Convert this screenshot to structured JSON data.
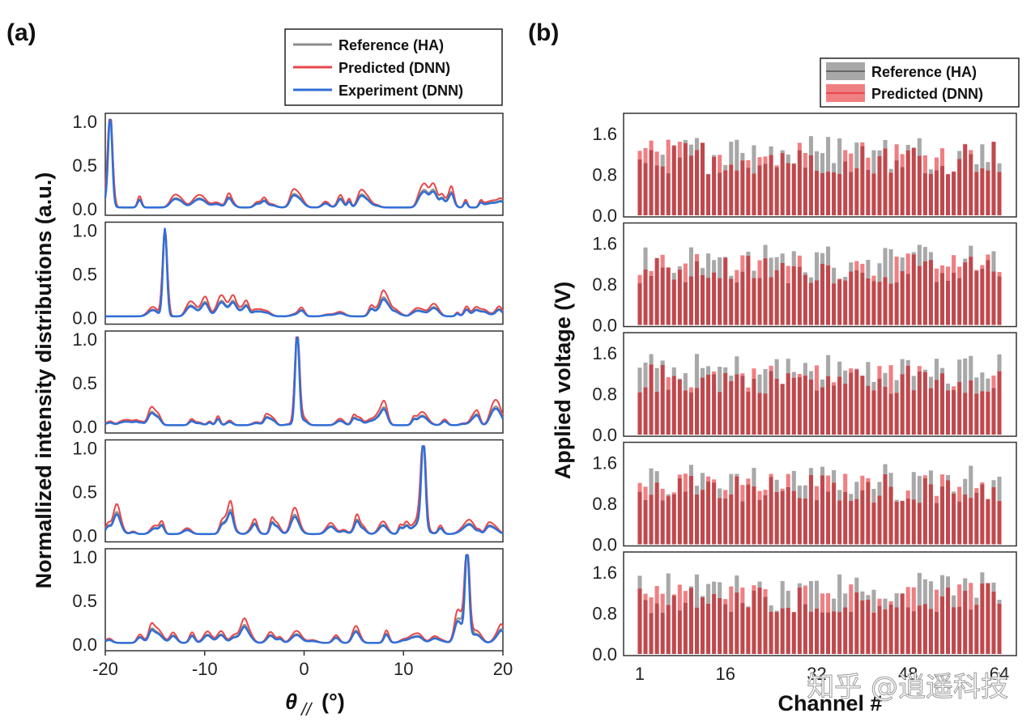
{
  "panel_a": {
    "label": "(a)",
    "ylabel": "Normallized intensity distributions (a.u.)",
    "xlabel_main": "θ",
    "xlabel_sub": "//",
    "xlabel_unit": "(°)",
    "legend": [
      "Reference (HA)",
      "Predicted (DNN)",
      "Experiment (DNN)"
    ],
    "yticks": [
      "0.0",
      "0.5",
      "1.0"
    ],
    "xticks": [
      "-20",
      "-10",
      "0",
      "10",
      "20"
    ]
  },
  "panel_b": {
    "label": "(b)",
    "ylabel": "Applied voltage (V)",
    "xlabel": "Channel #",
    "legend": [
      "Reference (HA)",
      "Predicted (DNN)"
    ],
    "yticks": [
      "0.0",
      "0.8",
      "1.6"
    ],
    "xticks": [
      "1",
      "16",
      "32",
      "48",
      "64"
    ]
  },
  "watermark": "知乎 @逍遥科技",
  "colors": {
    "reference": "#8c8c8c",
    "predicted": "#e8474a",
    "experiment": "#2f6fd6",
    "bar_reference": "#a8a8a8",
    "bar_predicted": "#f07f82",
    "bar_overlap": "#c0484c"
  },
  "chart_data": [
    {
      "type": "line",
      "panel": "a",
      "xlim": [
        -20,
        20
      ],
      "ylim": [
        0,
        1.05
      ],
      "subplots": [
        {
          "peak_deg": -19.5,
          "series": [
            {
              "name": "Reference (HA)",
              "peak": 1.0
            },
            {
              "name": "Predicted (DNN)",
              "peak": 1.0
            },
            {
              "name": "Experiment (DNN)",
              "peak": 1.0
            }
          ],
          "background_level": 0.08
        },
        {
          "peak_deg": -14.0,
          "series": [
            {
              "name": "Reference (HA)",
              "peak": 1.0
            },
            {
              "name": "Predicted (DNN)",
              "peak": 1.0
            },
            {
              "name": "Experiment (DNN)",
              "peak": 1.0
            }
          ],
          "background_level": 0.08
        },
        {
          "peak_deg": -0.7,
          "series": [
            {
              "name": "Reference (HA)",
              "peak": 1.0
            },
            {
              "name": "Predicted (DNN)",
              "peak": 1.0
            },
            {
              "name": "Experiment (DNN)",
              "peak": 1.0
            }
          ],
          "background_level": 0.07
        },
        {
          "peak_deg": 12.0,
          "series": [
            {
              "name": "Reference (HA)",
              "peak": 1.0
            },
            {
              "name": "Predicted (DNN)",
              "peak": 1.0
            },
            {
              "name": "Experiment (DNN)",
              "peak": 1.0
            }
          ],
          "background_level": 0.09
        },
        {
          "peak_deg": 16.4,
          "series": [
            {
              "name": "Reference (HA)",
              "peak": 1.0
            },
            {
              "name": "Predicted (DNN)",
              "peak": 1.0
            },
            {
              "name": "Experiment (DNN)",
              "peak": 1.0
            }
          ],
          "background_level": 0.08
        }
      ]
    },
    {
      "type": "bar",
      "panel": "b",
      "channels": 64,
      "ylim": [
        0,
        1.9
      ],
      "subplots": [
        {
          "series": [
            {
              "name": "Reference (HA)",
              "range": [
                0.8,
                1.6
              ]
            },
            {
              "name": "Predicted (DNN)",
              "range": [
                0.8,
                1.5
              ]
            }
          ]
        },
        {
          "series": [
            {
              "name": "Reference (HA)",
              "range": [
                0.8,
                1.6
              ]
            },
            {
              "name": "Predicted (DNN)",
              "range": [
                0.8,
                1.4
              ]
            }
          ]
        },
        {
          "series": [
            {
              "name": "Reference (HA)",
              "range": [
                0.8,
                1.6
              ]
            },
            {
              "name": "Predicted (DNN)",
              "range": [
                0.8,
                1.4
              ]
            }
          ]
        },
        {
          "series": [
            {
              "name": "Reference (HA)",
              "range": [
                0.8,
                1.6
              ]
            },
            {
              "name": "Predicted (DNN)",
              "range": [
                0.8,
                1.4
              ]
            }
          ]
        },
        {
          "series": [
            {
              "name": "Reference (HA)",
              "range": [
                0.8,
                1.6
              ]
            },
            {
              "name": "Predicted (DNN)",
              "range": [
                0.8,
                1.4
              ]
            }
          ]
        }
      ]
    }
  ]
}
